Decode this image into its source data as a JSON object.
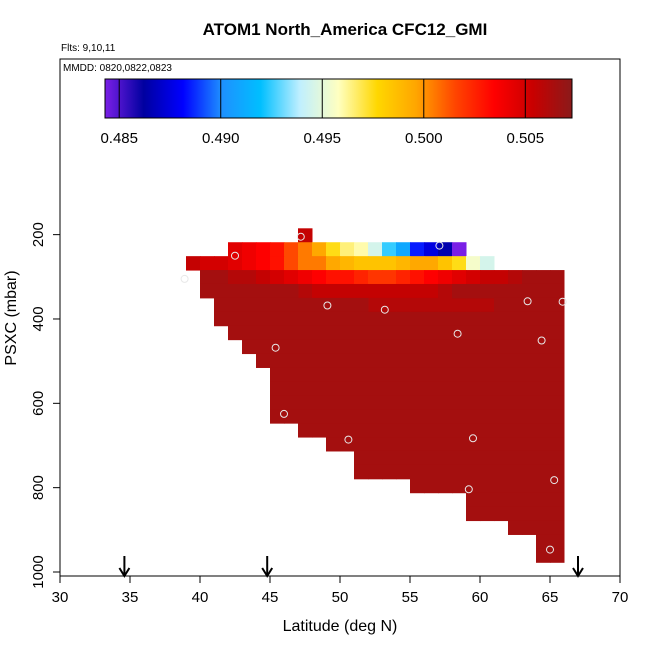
{
  "chart_data": {
    "type": "heatmap",
    "title": "ATOM1 North_America CFC12_GMI",
    "flights_note": "Flts: 9,10,11",
    "dates_note": "MMDD: 0820,0822,0823",
    "xlabel": "Latitude (deg N)",
    "ylabel": "PSXC (mbar)",
    "xlim": [
      30,
      70
    ],
    "ylim": [
      1000,
      0
    ],
    "xticks": [
      30,
      35,
      40,
      45,
      50,
      55,
      60,
      65,
      70
    ],
    "yticks": [
      200,
      400,
      600,
      800,
      1000
    ],
    "colorbar": {
      "range": [
        0.4843,
        0.5073
      ],
      "ticks": [
        "0.485",
        "0.490",
        "0.495",
        "0.500",
        "0.505"
      ],
      "colors": [
        "#7a1fe6",
        "#0000a0",
        "#0000ff",
        "#1e90ff",
        "#00bfff",
        "#bfefff",
        "#ffffc0",
        "#ffd700",
        "#ffa500",
        "#ff4500",
        "#ff0000",
        "#c80000",
        "#8b1a1a"
      ]
    },
    "cell_size": {
      "dlat": 1,
      "dp": 33
    },
    "default_value": 0.5065,
    "rows": [
      {
        "p": 185,
        "cells": [
          [
            47,
            0.5055
          ]
        ]
      },
      {
        "p": 218,
        "cells": [
          [
            42,
            0.5045
          ],
          [
            43,
            0.504
          ],
          [
            44,
            0.5035
          ],
          [
            45,
            0.503
          ],
          [
            46,
            0.5015
          ],
          [
            47,
            0.5005
          ],
          [
            48,
            0.4995
          ],
          [
            49,
            0.4975
          ],
          [
            50,
            0.4965
          ],
          [
            51,
            0.496
          ],
          [
            52,
            0.4945
          ],
          [
            53,
            0.4925
          ],
          [
            54,
            0.491
          ],
          [
            55,
            0.4885
          ],
          [
            56,
            0.4875
          ],
          [
            57,
            0.4865
          ],
          [
            58,
            0.484
          ]
        ]
      },
      {
        "p": 251,
        "cells": [
          [
            39,
            0.5055
          ],
          [
            40,
            0.505
          ],
          [
            41,
            0.505
          ],
          [
            42,
            0.5045
          ],
          [
            43,
            0.504
          ],
          [
            44,
            0.5035
          ],
          [
            45,
            0.503
          ],
          [
            46,
            0.5015
          ],
          [
            47,
            0.5005
          ],
          [
            48,
            0.5005
          ],
          [
            49,
            0.4995
          ],
          [
            50,
            0.499
          ],
          [
            51,
            0.4985
          ],
          [
            52,
            0.4985
          ],
          [
            53,
            0.4985
          ],
          [
            54,
            0.499
          ],
          [
            55,
            0.4995
          ],
          [
            56,
            0.4995
          ],
          [
            57,
            0.4985
          ],
          [
            58,
            0.4975
          ],
          [
            59,
            0.4955
          ],
          [
            60,
            0.4945
          ]
        ]
      },
      {
        "p": 284,
        "cells": [
          [
            40,
            0.5065
          ],
          [
            41,
            0.5065
          ],
          [
            42,
            0.506
          ],
          [
            43,
            0.506
          ],
          [
            44,
            0.5055
          ],
          [
            45,
            0.505
          ],
          [
            46,
            0.5045
          ],
          [
            47,
            0.504
          ],
          [
            48,
            0.5035
          ],
          [
            49,
            0.503
          ],
          [
            50,
            0.503
          ],
          [
            51,
            0.5025
          ],
          [
            52,
            0.502
          ],
          [
            53,
            0.502
          ],
          [
            54,
            0.5025
          ],
          [
            55,
            0.503
          ],
          [
            56,
            0.5035
          ],
          [
            57,
            0.504
          ],
          [
            58,
            0.5045
          ],
          [
            59,
            0.505
          ],
          [
            60,
            0.5055
          ],
          [
            61,
            0.5055
          ],
          [
            62,
            0.506
          ],
          [
            63,
            0.5065
          ],
          [
            64,
            0.5065
          ]
        ]
      },
      {
        "p": 317,
        "cells": [
          [
            47,
            0.506
          ],
          [
            48,
            0.5055
          ],
          [
            49,
            0.5055
          ],
          [
            50,
            0.5055
          ],
          [
            51,
            0.5055
          ],
          [
            52,
            0.5055
          ],
          [
            53,
            0.5055
          ],
          [
            54,
            0.5055
          ],
          [
            55,
            0.5055
          ],
          [
            56,
            0.5055
          ],
          [
            57,
            0.506
          ]
        ]
      },
      {
        "p": 350,
        "cells": [
          [
            52,
            0.506
          ],
          [
            53,
            0.506
          ],
          [
            54,
            0.506
          ],
          [
            55,
            0.506
          ],
          [
            56,
            0.506
          ],
          [
            57,
            0.506
          ],
          [
            58,
            0.506
          ],
          [
            59,
            0.506
          ],
          [
            60,
            0.506
          ]
        ]
      }
    ],
    "extents": [
      {
        "p": 284,
        "lat_min": 40,
        "lat_max": 65
      },
      {
        "p": 317,
        "lat_min": 40,
        "lat_max": 65
      },
      {
        "p": 350,
        "lat_min": 41,
        "lat_max": 65
      },
      {
        "p": 383,
        "lat_min": 41,
        "lat_max": 65
      },
      {
        "p": 416,
        "lat_min": 42,
        "lat_max": 65
      },
      {
        "p": 449,
        "lat_min": 43,
        "lat_max": 65
      },
      {
        "p": 482,
        "lat_min": 44,
        "lat_max": 65
      },
      {
        "p": 515,
        "lat_min": 45,
        "lat_max": 65
      },
      {
        "p": 548,
        "lat_min": 45,
        "lat_max": 65
      },
      {
        "p": 581,
        "lat_min": 45,
        "lat_max": 65
      },
      {
        "p": 614,
        "lat_min": 45,
        "lat_max": 65
      },
      {
        "p": 647,
        "lat_min": 47,
        "lat_max": 65
      },
      {
        "p": 680,
        "lat_min": 49,
        "lat_max": 65
      },
      {
        "p": 713,
        "lat_min": 51,
        "lat_max": 65
      },
      {
        "p": 746,
        "lat_min": 51,
        "lat_max": 65
      },
      {
        "p": 779,
        "lat_min": 55,
        "lat_max": 65
      },
      {
        "p": 812,
        "lat_min": 59,
        "lat_max": 65
      },
      {
        "p": 845,
        "lat_min": 59,
        "lat_max": 65
      },
      {
        "p": 878,
        "lat_min": 62,
        "lat_max": 65
      },
      {
        "p": 911,
        "lat_min": 64,
        "lat_max": 65
      },
      {
        "p": 944,
        "lat_min": 64,
        "lat_max": 65
      }
    ],
    "points": [
      {
        "lat": 47.2,
        "p": 205
      },
      {
        "lat": 42.5,
        "p": 250
      },
      {
        "lat": 57.1,
        "p": 226
      },
      {
        "lat": 38.9,
        "p": 305
      },
      {
        "lat": 49.1,
        "p": 368
      },
      {
        "lat": 53.2,
        "p": 378
      },
      {
        "lat": 63.4,
        "p": 358
      },
      {
        "lat": 65.9,
        "p": 359
      },
      {
        "lat": 58.4,
        "p": 435
      },
      {
        "lat": 64.4,
        "p": 451
      },
      {
        "lat": 45.4,
        "p": 468
      },
      {
        "lat": 46.0,
        "p": 625
      },
      {
        "lat": 50.6,
        "p": 686
      },
      {
        "lat": 59.5,
        "p": 683
      },
      {
        "lat": 65.3,
        "p": 782
      },
      {
        "lat": 59.2,
        "p": 804
      },
      {
        "lat": 65.0,
        "p": 947
      }
    ],
    "arrows": [
      34.6,
      44.8,
      67.0
    ]
  }
}
